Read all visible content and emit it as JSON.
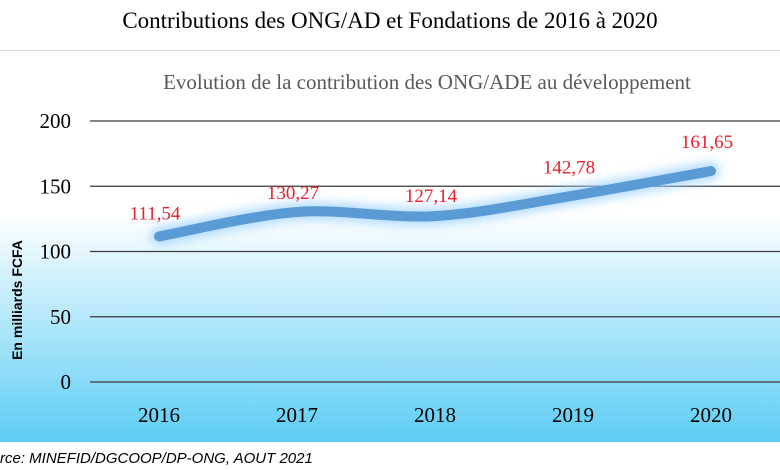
{
  "page_title": "Contributions des ONG/AD et Fondations de 2016 à 2020",
  "source": "rce: MINEFID/DGCOOP/DP-ONG, AOUT 2021",
  "chart_data": {
    "type": "line",
    "title": "Evolution de la contribution des ONG/ADE au développement",
    "xlabel": "",
    "ylabel": "En milliards FCFA",
    "categories": [
      "2016",
      "2017",
      "2018",
      "2019",
      "2020"
    ],
    "values": [
      111.54,
      130.27,
      127.14,
      142.78,
      161.65
    ],
    "data_labels": [
      "111,54",
      "130,27",
      "127,14",
      "142,78",
      "161,65"
    ],
    "ylim": [
      0,
      200
    ],
    "yticks": [
      0,
      50,
      100,
      150,
      200
    ],
    "grid": true,
    "line_color": "#5b9bd5",
    "label_color": "#e8202a",
    "background_gradient": [
      "#ffffff",
      "#5ccdf5"
    ]
  }
}
